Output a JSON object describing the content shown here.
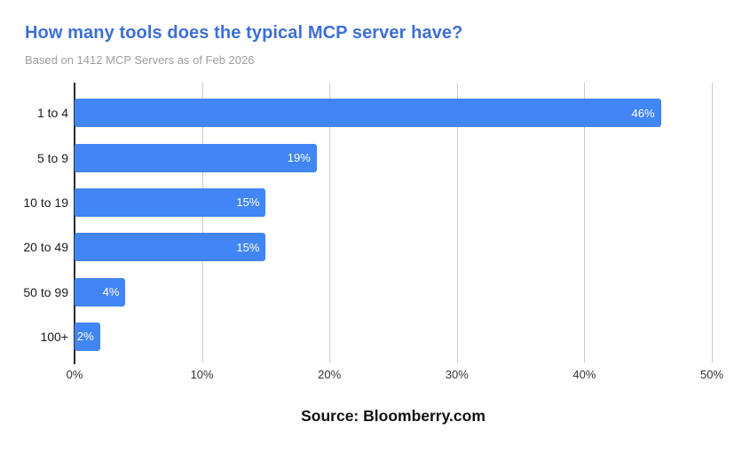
{
  "header": {
    "title": "How many tools does the typical MCP server have?",
    "subtitle": "Based on 1412 MCP Servers as of Feb 2026"
  },
  "chart_data": {
    "type": "bar",
    "orientation": "horizontal",
    "title": "How many tools does the typical MCP server have?",
    "subtitle": "Based on 1412 MCP Servers as of Feb 2026",
    "categories": [
      "1 to 4",
      "5 to 9",
      "10 to 19",
      "20 to 49",
      "50 to 99",
      "100+"
    ],
    "values": [
      46,
      19,
      15,
      15,
      4,
      2
    ],
    "value_labels": [
      "46%",
      "19%",
      "15%",
      "15%",
      "4%",
      "2%"
    ],
    "x_ticks": [
      "0%",
      "10%",
      "20%",
      "30%",
      "40%",
      "50%"
    ],
    "xlim": [
      0,
      50
    ],
    "xlabel": "",
    "ylabel": "",
    "grid": true,
    "legend": "none",
    "bar_color": "#4285F4",
    "value_label_color": "#FFFFFF"
  },
  "footer": {
    "source": "Source: Bloomberry.com"
  },
  "colors": {
    "title": "#3D6FD6",
    "subtitle": "#9E9E9E",
    "bar": "#4285F4",
    "gridline": "#CCCCCC",
    "axis": "#2B2B2B",
    "category_label": "#1B1B1B",
    "tick_label": "#333333",
    "source": "#111111",
    "background": "#FFFFFF"
  }
}
